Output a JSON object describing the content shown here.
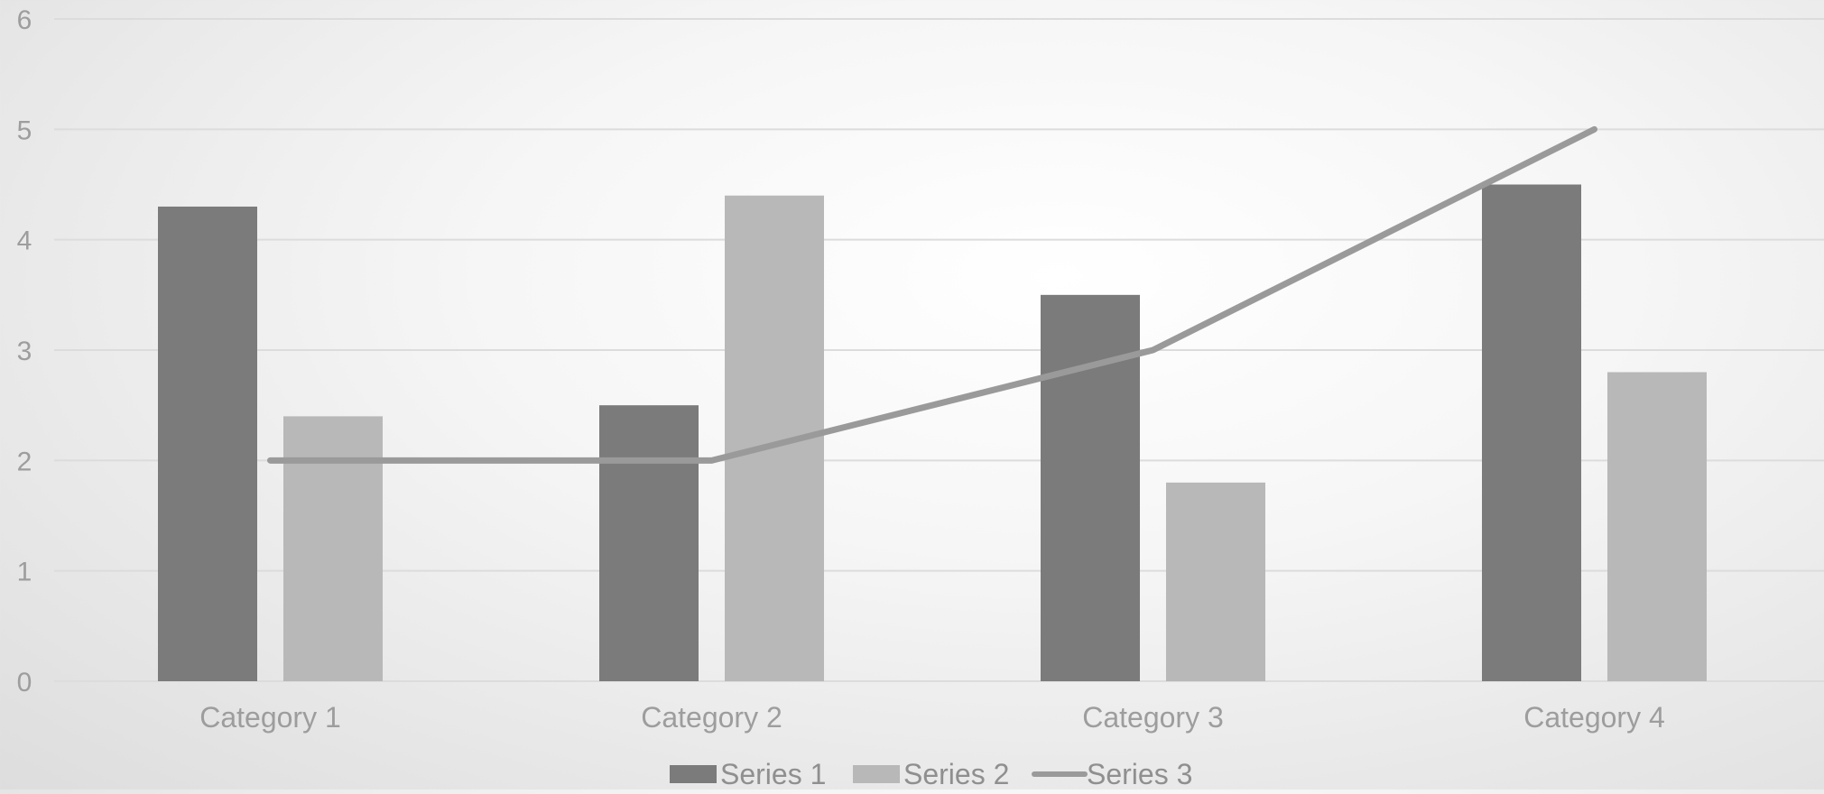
{
  "chart_data": {
    "type": "bar",
    "categories": [
      "Category 1",
      "Category 2",
      "Category 3",
      "Category 4"
    ],
    "series": [
      {
        "name": "Series 1",
        "type": "bar",
        "values": [
          4.3,
          2.5,
          3.5,
          4.5
        ],
        "color": "#7b7b7b"
      },
      {
        "name": "Series 2",
        "type": "bar",
        "values": [
          2.4,
          4.4,
          1.8,
          2.8
        ],
        "color": "#b8b8b8"
      },
      {
        "name": "Series 3",
        "type": "line",
        "values": [
          2,
          2,
          3,
          5
        ],
        "color": "#9a9a9a"
      }
    ],
    "y_ticks": [
      "0",
      "1",
      "2",
      "3",
      "4",
      "5",
      "6"
    ],
    "ylim": [
      0,
      6
    ],
    "grid": true,
    "legend_position": "bottom",
    "title": "",
    "xlabel": "",
    "ylabel": ""
  },
  "colors": {
    "gridline": "#dcdcdc",
    "axis_text": "#9d9d9d",
    "legend_text": "#8f8f8f"
  }
}
